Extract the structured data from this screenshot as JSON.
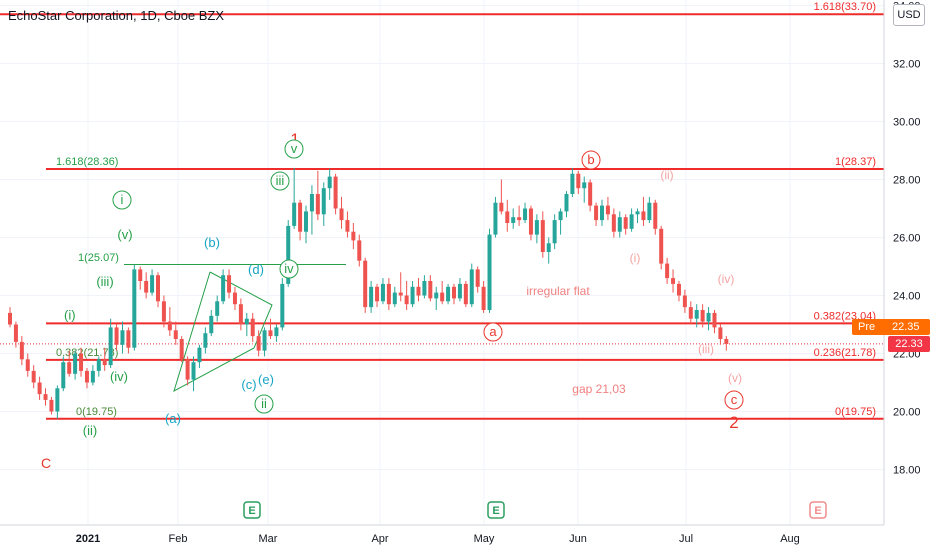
{
  "header": {
    "title": "EchoStar Corporation, 1D, Cboe BZX",
    "currency": "USD"
  },
  "price_tags": {
    "pre_label": "Pre",
    "pre_value": "22.35",
    "last_value": "22.33"
  },
  "colors": {
    "up": "#26a69a",
    "down": "#ef5350",
    "level_line": "#ef2b2b",
    "wave_green": "#26a048",
    "wave_cyan": "#16a5c4",
    "wave_red": "#e8372c",
    "wave_pink": "#f5a3a3",
    "earnings": "#2a9d5f",
    "earnings_future": "#f28b8b",
    "pre_badge": "#ff6d00",
    "last_badge": "#f23645"
  },
  "chart_data": {
    "type": "candlestick",
    "symbol": "EchoStar Corporation, 1D, Cboe BZX",
    "x_ticks": [
      "2021",
      "Feb",
      "Mar",
      "Apr",
      "May",
      "Jun",
      "Jul",
      "Aug"
    ],
    "y_ticks": [
      "18.00",
      "20.00",
      "22.00",
      "24.00",
      "26.00",
      "28.00",
      "30.00",
      "32.00",
      "34.00"
    ],
    "ylim": [
      17.0,
      34.2
    ],
    "grid": true,
    "earnings_markers": [
      {
        "date": "2021-02-26",
        "label": "E"
      },
      {
        "date": "2021-05-06",
        "label": "E"
      },
      {
        "date": "2021-08-06",
        "label": "E"
      }
    ],
    "levels": [
      {
        "label": "1.618(33.70)",
        "value": 33.7,
        "side": "right"
      },
      {
        "label": "1.618(28.36)",
        "value": 28.36,
        "side": "left"
      },
      {
        "label": "1(28.37)",
        "value": 28.37,
        "side": "right"
      },
      {
        "label": "0.382(23.04)",
        "value": 23.04,
        "side": "right"
      },
      {
        "label": "(i)",
        "value": 23.04,
        "side": "left"
      },
      {
        "label": "0.236(21.78)",
        "value": 21.78,
        "side": "right"
      },
      {
        "label": "0.382(21.78)",
        "value": 21.78,
        "side": "left"
      },
      {
        "label": "0(19.75)",
        "value": 19.75,
        "side": "right"
      },
      {
        "label": "0(19.75)",
        "value": 19.75,
        "side": "left"
      }
    ],
    "annotations": [
      {
        "text": "1(25.07)",
        "price": 25.07
      },
      {
        "text": "irregular flat"
      },
      {
        "text": "gap  21,03"
      }
    ],
    "wave_labels": [
      {
        "text": "1",
        "color": "red"
      },
      {
        "text": "2",
        "color": "red"
      },
      {
        "text": "C",
        "color": "red"
      },
      {
        "text": "a",
        "color": "red"
      },
      {
        "text": "b",
        "color": "red"
      },
      {
        "text": "c",
        "color": "red"
      },
      {
        "text": "i",
        "color": "green"
      },
      {
        "text": "ii",
        "color": "green"
      },
      {
        "text": "iii",
        "color": "green"
      },
      {
        "text": "iv",
        "color": "green"
      },
      {
        "text": "v",
        "color": "green"
      },
      {
        "text": "(i)",
        "color": "green"
      },
      {
        "text": "(ii)",
        "color": "green"
      },
      {
        "text": "(iii)",
        "color": "green"
      },
      {
        "text": "(iv)",
        "color": "green"
      },
      {
        "text": "(v)",
        "color": "green"
      },
      {
        "text": "(a)",
        "color": "cyan"
      },
      {
        "text": "(b)",
        "color": "cyan"
      },
      {
        "text": "(c)",
        "color": "cyan"
      },
      {
        "text": "(d)",
        "color": "cyan"
      },
      {
        "text": "(e)",
        "color": "cyan"
      },
      {
        "text": "(i)",
        "color": "pink"
      },
      {
        "text": "(ii)",
        "color": "pink"
      },
      {
        "text": "(iii)",
        "color": "pink"
      },
      {
        "text": "(iv)",
        "color": "pink"
      },
      {
        "text": "(v)",
        "color": "pink"
      }
    ],
    "candles": [
      {
        "o": 23.4,
        "h": 23.6,
        "l": 22.9,
        "c": 23.0
      },
      {
        "o": 23.0,
        "h": 23.1,
        "l": 22.2,
        "c": 22.4
      },
      {
        "o": 22.4,
        "h": 22.6,
        "l": 21.6,
        "c": 21.8
      },
      {
        "o": 21.8,
        "h": 22.0,
        "l": 21.2,
        "c": 21.4
      },
      {
        "o": 21.4,
        "h": 21.6,
        "l": 20.8,
        "c": 21.0
      },
      {
        "o": 21.0,
        "h": 21.2,
        "l": 20.4,
        "c": 20.6
      },
      {
        "o": 20.6,
        "h": 20.8,
        "l": 20.2,
        "c": 20.4
      },
      {
        "o": 20.4,
        "h": 20.5,
        "l": 19.9,
        "c": 20.0
      },
      {
        "o": 20.0,
        "h": 20.9,
        "l": 19.75,
        "c": 20.8
      },
      {
        "o": 20.8,
        "h": 21.9,
        "l": 20.7,
        "c": 21.7
      },
      {
        "o": 21.7,
        "h": 22.1,
        "l": 21.2,
        "c": 21.3
      },
      {
        "o": 21.3,
        "h": 22.1,
        "l": 21.1,
        "c": 22.0
      },
      {
        "o": 22.0,
        "h": 22.2,
        "l": 21.2,
        "c": 21.4
      },
      {
        "o": 21.4,
        "h": 21.5,
        "l": 20.8,
        "c": 21.0
      },
      {
        "o": 21.0,
        "h": 21.6,
        "l": 20.9,
        "c": 21.4
      },
      {
        "o": 21.4,
        "h": 21.9,
        "l": 21.2,
        "c": 21.8
      },
      {
        "o": 21.8,
        "h": 22.2,
        "l": 21.4,
        "c": 21.6
      },
      {
        "o": 21.6,
        "h": 23.2,
        "l": 21.5,
        "c": 22.9
      },
      {
        "o": 22.9,
        "h": 23.0,
        "l": 22.1,
        "c": 22.3
      },
      {
        "o": 22.3,
        "h": 23.1,
        "l": 22.0,
        "c": 22.8
      },
      {
        "o": 22.8,
        "h": 22.9,
        "l": 22.0,
        "c": 22.2
      },
      {
        "o": 22.2,
        "h": 25.07,
        "l": 22.1,
        "c": 24.9
      },
      {
        "o": 24.9,
        "h": 25.0,
        "l": 24.2,
        "c": 24.5
      },
      {
        "o": 24.5,
        "h": 24.8,
        "l": 23.9,
        "c": 24.1
      },
      {
        "o": 24.1,
        "h": 24.9,
        "l": 24.0,
        "c": 24.7
      },
      {
        "o": 24.7,
        "h": 24.8,
        "l": 23.6,
        "c": 23.8
      },
      {
        "o": 23.8,
        "h": 24.0,
        "l": 22.9,
        "c": 23.1
      },
      {
        "o": 23.1,
        "h": 23.6,
        "l": 22.6,
        "c": 22.8
      },
      {
        "o": 22.8,
        "h": 23.1,
        "l": 22.3,
        "c": 22.5
      },
      {
        "o": 22.5,
        "h": 22.6,
        "l": 21.7,
        "c": 21.8
      },
      {
        "o": 21.8,
        "h": 21.9,
        "l": 20.9,
        "c": 21.1
      },
      {
        "o": 21.1,
        "h": 21.9,
        "l": 20.7,
        "c": 21.7
      },
      {
        "o": 21.7,
        "h": 22.3,
        "l": 21.5,
        "c": 22.2
      },
      {
        "o": 22.2,
        "h": 22.9,
        "l": 22.0,
        "c": 22.7
      },
      {
        "o": 22.7,
        "h": 23.5,
        "l": 22.6,
        "c": 23.3
      },
      {
        "o": 23.3,
        "h": 24.0,
        "l": 23.1,
        "c": 23.8
      },
      {
        "o": 23.8,
        "h": 24.9,
        "l": 23.7,
        "c": 24.7
      },
      {
        "o": 24.7,
        "h": 24.9,
        "l": 23.9,
        "c": 24.1
      },
      {
        "o": 24.1,
        "h": 24.3,
        "l": 23.5,
        "c": 23.7
      },
      {
        "o": 23.7,
        "h": 23.9,
        "l": 22.8,
        "c": 23.0
      },
      {
        "o": 23.0,
        "h": 23.4,
        "l": 22.6,
        "c": 23.2
      },
      {
        "o": 23.2,
        "h": 23.4,
        "l": 22.4,
        "c": 22.6
      },
      {
        "o": 22.6,
        "h": 22.8,
        "l": 21.9,
        "c": 22.1
      },
      {
        "o": 22.1,
        "h": 22.9,
        "l": 21.9,
        "c": 22.8
      },
      {
        "o": 22.8,
        "h": 23.2,
        "l": 22.5,
        "c": 22.6
      },
      {
        "o": 22.6,
        "h": 23.0,
        "l": 22.4,
        "c": 22.9
      },
      {
        "o": 22.9,
        "h": 24.6,
        "l": 22.8,
        "c": 24.4
      },
      {
        "o": 24.4,
        "h": 26.6,
        "l": 24.3,
        "c": 26.4
      },
      {
        "o": 26.4,
        "h": 28.4,
        "l": 26.3,
        "c": 27.2
      },
      {
        "o": 27.2,
        "h": 27.3,
        "l": 25.9,
        "c": 26.2
      },
      {
        "o": 26.2,
        "h": 27.1,
        "l": 25.8,
        "c": 26.9
      },
      {
        "o": 26.9,
        "h": 27.8,
        "l": 26.1,
        "c": 27.5
      },
      {
        "o": 27.5,
        "h": 28.3,
        "l": 26.6,
        "c": 26.8
      },
      {
        "o": 26.8,
        "h": 27.9,
        "l": 26.4,
        "c": 27.7
      },
      {
        "o": 27.7,
        "h": 28.37,
        "l": 27.3,
        "c": 28.1
      },
      {
        "o": 28.1,
        "h": 28.2,
        "l": 26.8,
        "c": 27.0
      },
      {
        "o": 27.0,
        "h": 27.4,
        "l": 26.3,
        "c": 26.6
      },
      {
        "o": 26.6,
        "h": 26.9,
        "l": 26.0,
        "c": 26.2
      },
      {
        "o": 26.2,
        "h": 26.5,
        "l": 25.6,
        "c": 25.9
      },
      {
        "o": 25.9,
        "h": 26.1,
        "l": 25.0,
        "c": 25.2
      },
      {
        "o": 25.2,
        "h": 25.3,
        "l": 23.4,
        "c": 23.6
      },
      {
        "o": 23.6,
        "h": 24.5,
        "l": 23.4,
        "c": 24.3
      },
      {
        "o": 24.3,
        "h": 24.4,
        "l": 23.6,
        "c": 23.8
      },
      {
        "o": 23.8,
        "h": 24.6,
        "l": 23.7,
        "c": 24.4
      },
      {
        "o": 24.4,
        "h": 24.6,
        "l": 23.5,
        "c": 23.7
      },
      {
        "o": 23.7,
        "h": 24.3,
        "l": 23.6,
        "c": 24.1
      },
      {
        "o": 24.1,
        "h": 24.8,
        "l": 23.8,
        "c": 24.0
      },
      {
        "o": 24.0,
        "h": 24.5,
        "l": 23.5,
        "c": 23.7
      },
      {
        "o": 23.7,
        "h": 24.5,
        "l": 23.6,
        "c": 24.3
      },
      {
        "o": 24.3,
        "h": 24.6,
        "l": 23.8,
        "c": 24.0
      },
      {
        "o": 24.0,
        "h": 24.7,
        "l": 23.9,
        "c": 24.5
      },
      {
        "o": 24.5,
        "h": 24.7,
        "l": 23.8,
        "c": 23.9
      },
      {
        "o": 23.9,
        "h": 24.3,
        "l": 23.5,
        "c": 24.1
      },
      {
        "o": 24.1,
        "h": 24.5,
        "l": 23.7,
        "c": 23.8
      },
      {
        "o": 23.8,
        "h": 24.4,
        "l": 23.7,
        "c": 24.3
      },
      {
        "o": 24.3,
        "h": 24.4,
        "l": 23.7,
        "c": 23.9
      },
      {
        "o": 23.9,
        "h": 24.6,
        "l": 23.8,
        "c": 24.4
      },
      {
        "o": 24.4,
        "h": 24.5,
        "l": 23.6,
        "c": 23.7
      },
      {
        "o": 23.7,
        "h": 25.1,
        "l": 23.6,
        "c": 24.9
      },
      {
        "o": 24.9,
        "h": 25.0,
        "l": 24.1,
        "c": 24.3
      },
      {
        "o": 24.3,
        "h": 24.5,
        "l": 23.4,
        "c": 23.5
      },
      {
        "o": 23.5,
        "h": 26.3,
        "l": 23.4,
        "c": 26.1
      },
      {
        "o": 26.1,
        "h": 27.4,
        "l": 26.0,
        "c": 27.2
      },
      {
        "o": 27.2,
        "h": 28.0,
        "l": 26.8,
        "c": 26.9
      },
      {
        "o": 26.9,
        "h": 27.3,
        "l": 26.2,
        "c": 26.5
      },
      {
        "o": 26.5,
        "h": 27.0,
        "l": 26.3,
        "c": 26.7
      },
      {
        "o": 26.7,
        "h": 27.1,
        "l": 26.4,
        "c": 26.6
      },
      {
        "o": 26.6,
        "h": 27.2,
        "l": 26.5,
        "c": 27.0
      },
      {
        "o": 27.0,
        "h": 27.1,
        "l": 25.9,
        "c": 26.1
      },
      {
        "o": 26.1,
        "h": 26.8,
        "l": 25.8,
        "c": 26.6
      },
      {
        "o": 26.6,
        "h": 26.9,
        "l": 25.3,
        "c": 25.5
      },
      {
        "o": 25.5,
        "h": 26.0,
        "l": 25.1,
        "c": 25.8
      },
      {
        "o": 25.8,
        "h": 26.8,
        "l": 25.6,
        "c": 26.6
      },
      {
        "o": 26.6,
        "h": 27.0,
        "l": 26.1,
        "c": 26.9
      },
      {
        "o": 26.9,
        "h": 27.6,
        "l": 26.7,
        "c": 27.5
      },
      {
        "o": 27.5,
        "h": 28.4,
        "l": 27.4,
        "c": 28.2
      },
      {
        "o": 28.2,
        "h": 28.3,
        "l": 27.5,
        "c": 27.7
      },
      {
        "o": 27.7,
        "h": 28.1,
        "l": 27.2,
        "c": 27.9
      },
      {
        "o": 27.9,
        "h": 28.0,
        "l": 26.9,
        "c": 27.1
      },
      {
        "o": 27.1,
        "h": 27.2,
        "l": 26.4,
        "c": 26.6
      },
      {
        "o": 26.6,
        "h": 27.3,
        "l": 26.4,
        "c": 27.1
      },
      {
        "o": 27.1,
        "h": 27.4,
        "l": 26.6,
        "c": 26.8
      },
      {
        "o": 26.8,
        "h": 27.0,
        "l": 26.0,
        "c": 26.2
      },
      {
        "o": 26.2,
        "h": 26.9,
        "l": 26.0,
        "c": 26.7
      },
      {
        "o": 26.7,
        "h": 26.8,
        "l": 26.1,
        "c": 26.3
      },
      {
        "o": 26.3,
        "h": 27.0,
        "l": 26.2,
        "c": 26.8
      },
      {
        "o": 26.8,
        "h": 27.0,
        "l": 26.5,
        "c": 26.9
      },
      {
        "o": 26.9,
        "h": 27.4,
        "l": 26.4,
        "c": 26.6
      },
      {
        "o": 26.6,
        "h": 27.4,
        "l": 26.5,
        "c": 27.2
      },
      {
        "o": 27.2,
        "h": 27.3,
        "l": 26.1,
        "c": 26.3
      },
      {
        "o": 26.3,
        "h": 26.4,
        "l": 24.9,
        "c": 25.1
      },
      {
        "o": 25.1,
        "h": 25.3,
        "l": 24.4,
        "c": 24.6
      },
      {
        "o": 24.6,
        "h": 24.9,
        "l": 24.1,
        "c": 24.4
      },
      {
        "o": 24.4,
        "h": 24.5,
        "l": 23.8,
        "c": 24.0
      },
      {
        "o": 24.0,
        "h": 24.2,
        "l": 23.4,
        "c": 23.6
      },
      {
        "o": 23.6,
        "h": 23.8,
        "l": 23.0,
        "c": 23.2
      },
      {
        "o": 23.2,
        "h": 23.7,
        "l": 22.9,
        "c": 23.5
      },
      {
        "o": 23.5,
        "h": 23.7,
        "l": 22.9,
        "c": 23.1
      },
      {
        "o": 23.1,
        "h": 23.6,
        "l": 22.8,
        "c": 23.4
      },
      {
        "o": 23.4,
        "h": 23.5,
        "l": 22.7,
        "c": 22.9
      },
      {
        "o": 22.9,
        "h": 23.0,
        "l": 22.3,
        "c": 22.5
      },
      {
        "o": 22.5,
        "h": 22.6,
        "l": 22.1,
        "c": 22.33
      }
    ]
  }
}
